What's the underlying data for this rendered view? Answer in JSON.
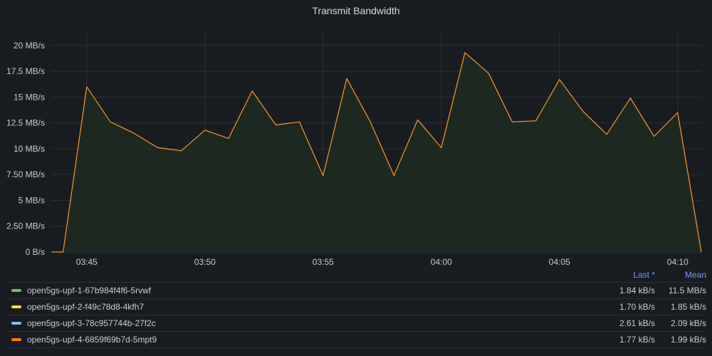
{
  "panel": {
    "title": "Transmit Bandwidth"
  },
  "colors": {
    "background": "#181b1f",
    "grid": "#2c3036",
    "line": "#ff9830",
    "fill": "#1f2a22",
    "header": "#6e9fff"
  },
  "legend": {
    "columns": {
      "last": "Last *",
      "mean": "Mean"
    },
    "items": [
      {
        "name": "open5gs-upf-1-67b984f4f6-5rvwf",
        "color": "#73bf69",
        "last": "1.84 kB/s",
        "mean": "11.5 MB/s"
      },
      {
        "name": "open5gs-upf-2-f49c78d8-4kfh7",
        "color": "#fade2a",
        "last": "1.70 kB/s",
        "mean": "1.85 kB/s"
      },
      {
        "name": "open5gs-upf-3-78c957744b-27f2c",
        "color": "#8ab8ff",
        "last": "2.61 kB/s",
        "mean": "2.09 kB/s"
      },
      {
        "name": "open5gs-upf-4-6859f69b7d-5mpt9",
        "color": "#ff780a",
        "last": "1.77 kB/s",
        "mean": "1.99 kB/s"
      }
    ]
  },
  "chart_data": {
    "type": "area",
    "title": "Transmit Bandwidth",
    "xlabel": "",
    "ylabel": "",
    "ylim": [
      0,
      21.5
    ],
    "y_unit": "MB/s",
    "y_ticks": [
      "0 B/s",
      "2.50 MB/s",
      "5 MB/s",
      "7.50 MB/s",
      "10 MB/s",
      "12.5 MB/s",
      "15 MB/s",
      "17.5 MB/s",
      "20 MB/s"
    ],
    "y_tick_values": [
      0,
      2.5,
      5,
      7.5,
      10,
      12.5,
      15,
      17.5,
      20
    ],
    "x_ticks": [
      "03:45",
      "03:50",
      "03:55",
      "04:00",
      "04:05",
      "04:10"
    ],
    "x_tick_minutes": [
      0,
      5,
      10,
      15,
      20,
      25
    ],
    "xlim_minutes": [
      -1.5,
      26.0
    ],
    "grid": true,
    "series": [
      {
        "name": "open5gs-upf-1-67b984f4f6-5rvwf",
        "x_minutes": [
          -1.5,
          -1.0,
          0,
          1,
          2,
          3,
          4,
          5,
          6,
          7,
          8,
          9,
          10,
          11,
          12,
          13,
          14,
          15,
          16,
          17,
          18,
          19,
          20,
          21,
          22,
          23,
          24,
          25,
          26.0
        ],
        "values": [
          0,
          0,
          16.0,
          12.6,
          11.5,
          10.1,
          9.8,
          11.8,
          11.0,
          15.6,
          12.3,
          12.6,
          7.4,
          16.8,
          12.6,
          7.4,
          12.8,
          10.1,
          19.3,
          17.3,
          12.6,
          12.7,
          16.7,
          13.6,
          11.4,
          14.9,
          11.2,
          13.5,
          0
        ]
      }
    ]
  }
}
